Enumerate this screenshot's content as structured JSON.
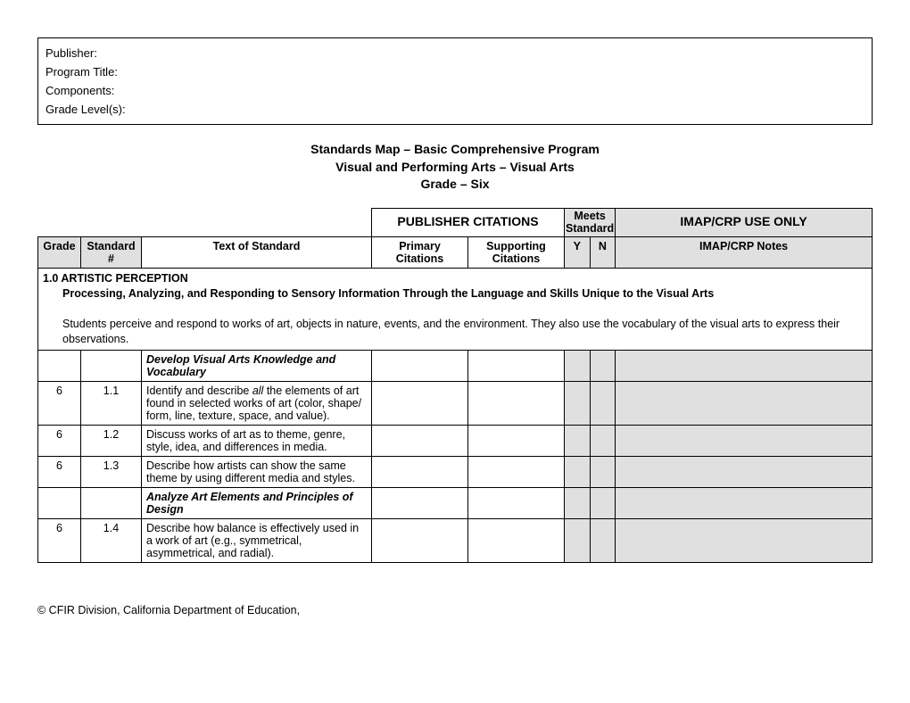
{
  "header": {
    "publisher": "Publisher:",
    "program_title": "Program Title:",
    "components": "Components:",
    "grade_levels": "Grade Level(s):"
  },
  "title": {
    "line1": "Standards Map – Basic Comprehensive Program",
    "line2": "Visual and Performing Arts – Visual Arts",
    "line3": "Grade – Six"
  },
  "top_headers": {
    "publisher_citations": "PUBLISHER CITATIONS",
    "meets_standard": "Meets Standard",
    "imap_use_only": "IMAP/CRP USE ONLY"
  },
  "col_headers": {
    "grade": "Grade",
    "standard_num": "Standard #",
    "text_of_standard": "Text of Standard",
    "primary": "Primary Citations",
    "supporting": "Supporting Citations",
    "y": "Y",
    "n": "N",
    "notes": "IMAP/CRP Notes"
  },
  "section": {
    "heading": "1.0 ARTISTIC PERCEPTION",
    "subheading": "Processing, Analyzing, and Responding to Sensory Information Through the Language and Skills Unique to the Visual Arts",
    "body": "Students perceive and respond to works of art, objects in nature, events, and the environment. They also use the vocabulary of the visual arts to express their observations."
  },
  "rows": [
    {
      "grade": "",
      "num": "",
      "text": "Develop Visual Arts Knowledge and Vocabulary",
      "sub": true
    },
    {
      "grade": "6",
      "num": "1.1",
      "text": "Identify and describe <i>all</i> the elements of art found in selected works of art (color, shape/ form, line, texture, space, and value).",
      "sub": false
    },
    {
      "grade": "6",
      "num": "1.2",
      "text": "Discuss works of art as to theme, genre, style, idea, and differences in media.",
      "sub": false
    },
    {
      "grade": "6",
      "num": "1.3",
      "text": "Describe how artists can show the same theme by using different media and styles.",
      "sub": false
    },
    {
      "grade": "",
      "num": "",
      "text": "Analyze Art Elements and Principles of Design",
      "sub": true
    },
    {
      "grade": "6",
      "num": "1.4",
      "text": "Describe how balance is effectively used in a work of art (e.g., symmetrical, asymmetrical, and radial).",
      "sub": false
    }
  ],
  "footer": "© CFIR Division, California Department of Education,"
}
